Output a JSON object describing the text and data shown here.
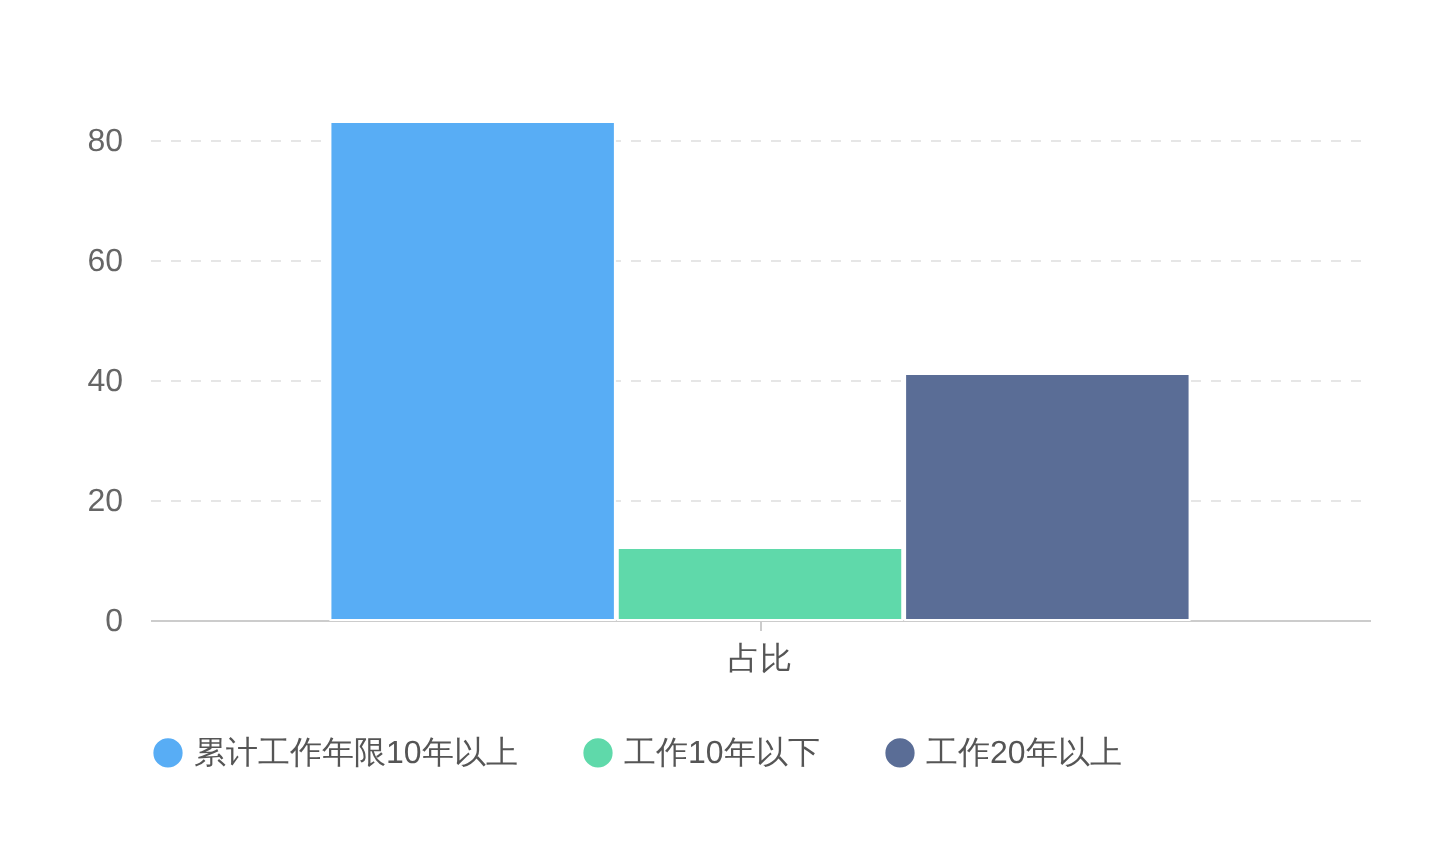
{
  "chart_data": {
    "type": "bar",
    "categories": [
      "占比"
    ],
    "series": [
      {
        "name": "累计工作年限10年以上",
        "color": "#58adf5",
        "values": [
          83
        ]
      },
      {
        "name": "工作10年以下",
        "color": "#5fd9aa",
        "values": [
          12
        ]
      },
      {
        "name": "工作20年以上",
        "color": "#5a6d96",
        "values": [
          41
        ]
      }
    ],
    "ylim": [
      0,
      83
    ],
    "yticks": [
      0,
      20,
      40,
      60,
      80
    ],
    "grid": "y",
    "legend": "bottom"
  }
}
